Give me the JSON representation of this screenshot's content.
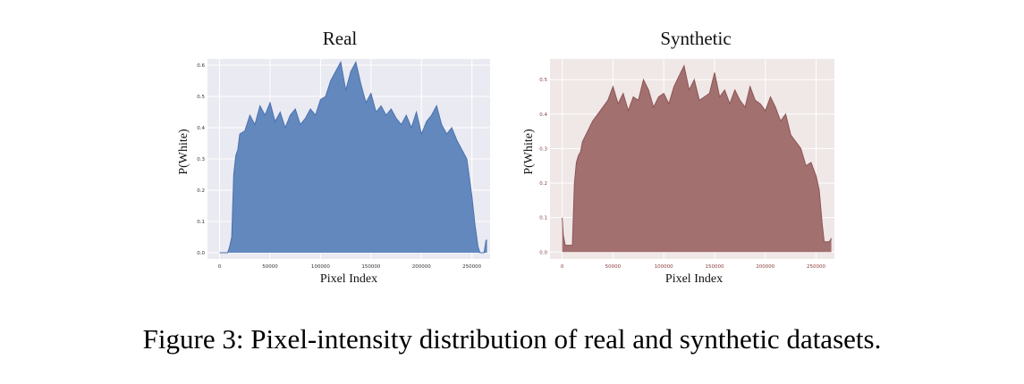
{
  "caption": "Figure 3: Pixel-intensity distribution of real and synthetic datasets.",
  "chart_data": [
    {
      "type": "area",
      "title": "Real",
      "xlabel": "Pixel Index",
      "ylabel": "P(White)",
      "xlim": [
        -12000,
        268000
      ],
      "ylim": [
        -0.02,
        0.62
      ],
      "xticks": [
        0,
        50000,
        100000,
        150000,
        200000,
        250000
      ],
      "yticks": [
        0.0,
        0.1,
        0.2,
        0.3,
        0.4,
        0.5,
        0.6
      ],
      "xtick_labels": [
        "0",
        "50000",
        "100000",
        "150000",
        "200000",
        "250000"
      ],
      "ytick_labels": [
        "0.0",
        "0.1",
        "0.2",
        "0.3",
        "0.4",
        "0.5",
        "0.6"
      ],
      "background": "#eaeaf2",
      "grid": true,
      "colors": {
        "fill": "#6288bd",
        "line": "#4c72b0",
        "tick_text": "#333333"
      },
      "series": [
        {
          "x": [
            0,
            8000,
            10000,
            12000,
            14000,
            16000,
            18000,
            20000,
            25000,
            30000,
            35000,
            40000,
            45000,
            50000,
            55000,
            60000,
            65000,
            70000,
            75000,
            80000,
            85000,
            90000,
            95000,
            100000,
            105000,
            110000,
            115000,
            120000,
            125000,
            130000,
            135000,
            140000,
            145000,
            150000,
            155000,
            160000,
            165000,
            170000,
            175000,
            180000,
            185000,
            190000,
            195000,
            200000,
            205000,
            210000,
            215000,
            220000,
            225000,
            230000,
            235000,
            240000,
            245000,
            250000,
            253000,
            256000,
            258000,
            260000,
            262000,
            264000,
            265000
          ],
          "y": [
            0.0,
            0.0,
            0.02,
            0.05,
            0.25,
            0.31,
            0.33,
            0.38,
            0.39,
            0.44,
            0.41,
            0.47,
            0.44,
            0.48,
            0.42,
            0.45,
            0.4,
            0.44,
            0.46,
            0.41,
            0.43,
            0.46,
            0.44,
            0.49,
            0.5,
            0.55,
            0.58,
            0.61,
            0.52,
            0.58,
            0.61,
            0.54,
            0.48,
            0.51,
            0.45,
            0.47,
            0.44,
            0.46,
            0.43,
            0.41,
            0.44,
            0.4,
            0.45,
            0.38,
            0.42,
            0.44,
            0.47,
            0.41,
            0.38,
            0.4,
            0.36,
            0.33,
            0.3,
            0.18,
            0.09,
            0.02,
            0.0,
            0.0,
            0.0,
            0.04,
            0.04
          ]
        }
      ]
    },
    {
      "type": "area",
      "title": "Synthetic",
      "xlabel": "Pixel Index",
      "ylabel": "P(White)",
      "xlim": [
        -12000,
        268000
      ],
      "ylim": [
        -0.02,
        0.56
      ],
      "xticks": [
        0,
        50000,
        100000,
        150000,
        200000,
        250000
      ],
      "yticks": [
        0.0,
        0.1,
        0.2,
        0.3,
        0.4,
        0.5
      ],
      "xtick_labels": [
        "0",
        "50000",
        "100000",
        "150000",
        "200000",
        "250000"
      ],
      "ytick_labels": [
        "0.0",
        "0.1",
        "0.2",
        "0.3",
        "0.4",
        "0.5"
      ],
      "background": "#f0e7e7",
      "grid": true,
      "colors": {
        "fill": "#a2706f",
        "line": "#8c5655",
        "tick_text": "#8c3b3b"
      },
      "series": [
        {
          "x": [
            0,
            1000,
            3000,
            6000,
            10000,
            12000,
            14000,
            16000,
            18000,
            20000,
            25000,
            30000,
            35000,
            40000,
            45000,
            50000,
            55000,
            60000,
            65000,
            70000,
            75000,
            80000,
            85000,
            90000,
            95000,
            100000,
            105000,
            110000,
            115000,
            120000,
            125000,
            130000,
            135000,
            140000,
            145000,
            150000,
            155000,
            160000,
            165000,
            170000,
            175000,
            180000,
            185000,
            190000,
            195000,
            200000,
            205000,
            210000,
            215000,
            220000,
            225000,
            230000,
            235000,
            240000,
            245000,
            250000,
            253000,
            256000,
            258000,
            260000,
            263000,
            265000
          ],
          "y": [
            0.1,
            0.05,
            0.02,
            0.02,
            0.02,
            0.2,
            0.26,
            0.28,
            0.29,
            0.32,
            0.35,
            0.38,
            0.4,
            0.42,
            0.44,
            0.48,
            0.43,
            0.46,
            0.41,
            0.45,
            0.44,
            0.5,
            0.47,
            0.42,
            0.45,
            0.46,
            0.43,
            0.48,
            0.51,
            0.54,
            0.47,
            0.5,
            0.44,
            0.45,
            0.46,
            0.52,
            0.45,
            0.47,
            0.43,
            0.47,
            0.44,
            0.42,
            0.48,
            0.44,
            0.43,
            0.41,
            0.45,
            0.42,
            0.38,
            0.4,
            0.34,
            0.32,
            0.3,
            0.25,
            0.26,
            0.22,
            0.18,
            0.08,
            0.03,
            0.03,
            0.03,
            0.04
          ]
        }
      ]
    }
  ]
}
